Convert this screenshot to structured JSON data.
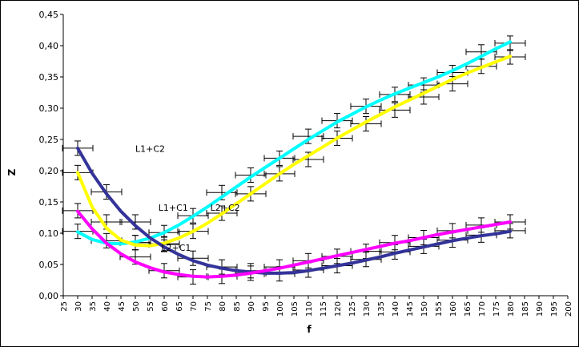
{
  "chart_data": {
    "type": "line",
    "title": "",
    "xlabel": "f",
    "ylabel": "Z",
    "xlim": [
      25,
      200
    ],
    "ylim": [
      0,
      0.45
    ],
    "grid": false,
    "legend": "none",
    "x_ticks": [
      "25",
      "30",
      "35",
      "40",
      "45",
      "50",
      "55",
      "60",
      "65",
      "70",
      "75",
      "80",
      "85",
      "90",
      "95",
      "100",
      "105",
      "110",
      "115",
      "120",
      "125",
      "130",
      "135",
      "140",
      "145",
      "150",
      "155",
      "160",
      "165",
      "170",
      "175",
      "180",
      "185",
      "190",
      "195",
      "200"
    ],
    "y_ticks": [
      "0,00",
      "0,05",
      "0,10",
      "0,15",
      "0,20",
      "0,25",
      "0,30",
      "0,35",
      "0,40",
      "0,45"
    ],
    "annotations": [
      {
        "text": "L1+C2",
        "x": 50,
        "y": 0.23
      },
      {
        "text": "L1+C1",
        "x": 58,
        "y": 0.136
      },
      {
        "text": "L2+C2",
        "x": 76,
        "y": 0.136
      },
      {
        "text": "L2+C1",
        "x": 59,
        "y": 0.072
      }
    ],
    "series": [
      {
        "color": "#00FFFF",
        "x": [
          30,
          35,
          40,
          45,
          50,
          55,
          60,
          65,
          70,
          75,
          80,
          85,
          90,
          95,
          100,
          105,
          110,
          115,
          120,
          125,
          130,
          135,
          140,
          145,
          150,
          155,
          160,
          165,
          170,
          175,
          180
        ],
        "y": [
          0.102,
          0.09,
          0.084,
          0.083,
          0.086,
          0.092,
          0.101,
          0.113,
          0.127,
          0.142,
          0.158,
          0.174,
          0.19,
          0.205,
          0.22,
          0.235,
          0.25,
          0.264,
          0.278,
          0.29,
          0.302,
          0.313,
          0.323,
          0.332,
          0.341,
          0.35,
          0.36,
          0.371,
          0.383,
          0.395,
          0.406
        ],
        "error_points": [
          [
            30,
            0.103
          ],
          [
            50,
            0.085
          ],
          [
            60,
            0.101
          ],
          [
            70,
            0.128
          ],
          [
            80,
            0.165
          ],
          [
            90,
            0.193
          ],
          [
            100,
            0.22
          ],
          [
            110,
            0.255
          ],
          [
            120,
            0.28
          ],
          [
            130,
            0.303
          ],
          [
            140,
            0.322
          ],
          [
            150,
            0.337
          ],
          [
            160,
            0.357
          ],
          [
            170,
            0.39
          ],
          [
            180,
            0.404
          ]
        ]
      },
      {
        "color": "#FFFF00",
        "x": [
          30,
          35,
          40,
          45,
          50,
          55,
          60,
          65,
          70,
          75,
          80,
          85,
          90,
          95,
          100,
          105,
          110,
          115,
          120,
          125,
          130,
          135,
          140,
          145,
          150,
          155,
          160,
          165,
          170,
          175,
          180
        ],
        "y": [
          0.197,
          0.142,
          0.108,
          0.089,
          0.081,
          0.08,
          0.084,
          0.092,
          0.103,
          0.116,
          0.131,
          0.147,
          0.163,
          0.179,
          0.195,
          0.21,
          0.224,
          0.238,
          0.252,
          0.265,
          0.278,
          0.29,
          0.302,
          0.313,
          0.324,
          0.335,
          0.346,
          0.356,
          0.365,
          0.374,
          0.383
        ],
        "error_points": [
          [
            30,
            0.197
          ],
          [
            40,
            0.118
          ],
          [
            50,
            0.085
          ],
          [
            60,
            0.083
          ],
          [
            70,
            0.103
          ],
          [
            80,
            0.132
          ],
          [
            90,
            0.163
          ],
          [
            100,
            0.195
          ],
          [
            110,
            0.218
          ],
          [
            120,
            0.252
          ],
          [
            130,
            0.275
          ],
          [
            140,
            0.297
          ],
          [
            150,
            0.318
          ],
          [
            160,
            0.339
          ],
          [
            170,
            0.367
          ],
          [
            180,
            0.382
          ]
        ]
      },
      {
        "color": "#333399",
        "x": [
          30,
          35,
          40,
          45,
          50,
          55,
          60,
          65,
          70,
          75,
          80,
          85,
          90,
          95,
          100,
          105,
          110,
          115,
          120,
          125,
          130,
          135,
          140,
          145,
          150,
          155,
          160,
          165,
          170,
          175,
          180
        ],
        "y": [
          0.236,
          0.196,
          0.163,
          0.135,
          0.112,
          0.093,
          0.078,
          0.066,
          0.056,
          0.049,
          0.044,
          0.04,
          0.038,
          0.036,
          0.036,
          0.037,
          0.04,
          0.044,
          0.048,
          0.052,
          0.057,
          0.062,
          0.068,
          0.073,
          0.078,
          0.083,
          0.088,
          0.092,
          0.096,
          0.099,
          0.103
        ],
        "error_points": [
          [
            30,
            0.236
          ],
          [
            40,
            0.166
          ],
          [
            50,
            0.118
          ],
          [
            60,
            0.082
          ],
          [
            70,
            0.06
          ],
          [
            80,
            0.046
          ],
          [
            90,
            0.036
          ],
          [
            100,
            0.035
          ],
          [
            110,
            0.041
          ],
          [
            120,
            0.048
          ],
          [
            130,
            0.058
          ],
          [
            140,
            0.07
          ],
          [
            150,
            0.079
          ],
          [
            160,
            0.089
          ],
          [
            170,
            0.097
          ],
          [
            180,
            0.104
          ]
        ]
      },
      {
        "color": "#FF00FF",
        "x": [
          30,
          35,
          40,
          45,
          50,
          55,
          60,
          65,
          70,
          75,
          80,
          85,
          90,
          95,
          100,
          105,
          110,
          115,
          120,
          125,
          130,
          135,
          140,
          145,
          150,
          155,
          160,
          165,
          170,
          175,
          180
        ],
        "y": [
          0.135,
          0.107,
          0.084,
          0.067,
          0.054,
          0.045,
          0.038,
          0.034,
          0.031,
          0.03,
          0.031,
          0.033,
          0.036,
          0.04,
          0.044,
          0.049,
          0.054,
          0.059,
          0.064,
          0.069,
          0.074,
          0.079,
          0.084,
          0.088,
          0.093,
          0.098,
          0.102,
          0.106,
          0.11,
          0.114,
          0.118
        ],
        "error_points": [
          [
            30,
            0.136
          ],
          [
            40,
            0.088
          ],
          [
            50,
            0.062
          ],
          [
            60,
            0.04
          ],
          [
            70,
            0.03
          ],
          [
            80,
            0.031
          ],
          [
            90,
            0.04
          ],
          [
            100,
            0.046
          ],
          [
            110,
            0.056
          ],
          [
            120,
            0.063
          ],
          [
            130,
            0.071
          ],
          [
            140,
            0.085
          ],
          [
            150,
            0.093
          ],
          [
            160,
            0.104
          ],
          [
            170,
            0.113
          ],
          [
            180,
            0.118
          ]
        ]
      }
    ]
  }
}
